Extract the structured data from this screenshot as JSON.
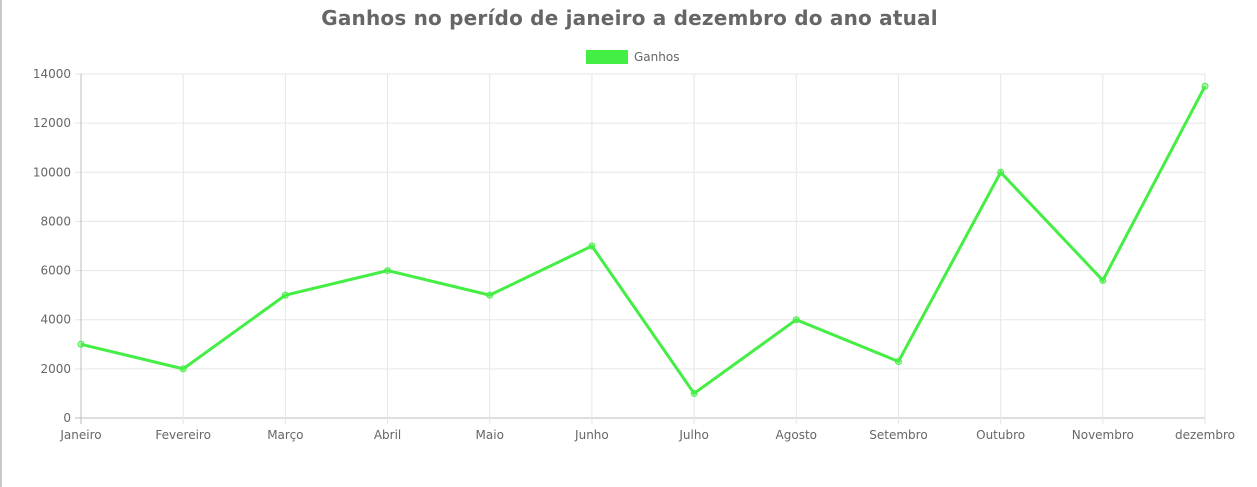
{
  "chart_data": {
    "type": "line",
    "title": "Ganhos no perído de janeiro a dezembro do ano atual",
    "categories": [
      "Janeiro",
      "Fevereiro",
      "Março",
      "Abril",
      "Maio",
      "Junho",
      "Julho",
      "Agosto",
      "Setembro",
      "Outubro",
      "Novembro",
      "dezembro"
    ],
    "series": [
      {
        "name": "Ganhos",
        "color": "#44ee44",
        "values": [
          3000,
          2000,
          5000,
          6000,
          5000,
          7000,
          1000,
          4000,
          2300,
          10000,
          5600,
          13500
        ]
      }
    ],
    "ylim": [
      0,
      14000
    ],
    "yticks": [
      0,
      2000,
      4000,
      6000,
      8000,
      10000,
      12000,
      14000
    ],
    "grid": true,
    "legend_position": "top-center"
  }
}
